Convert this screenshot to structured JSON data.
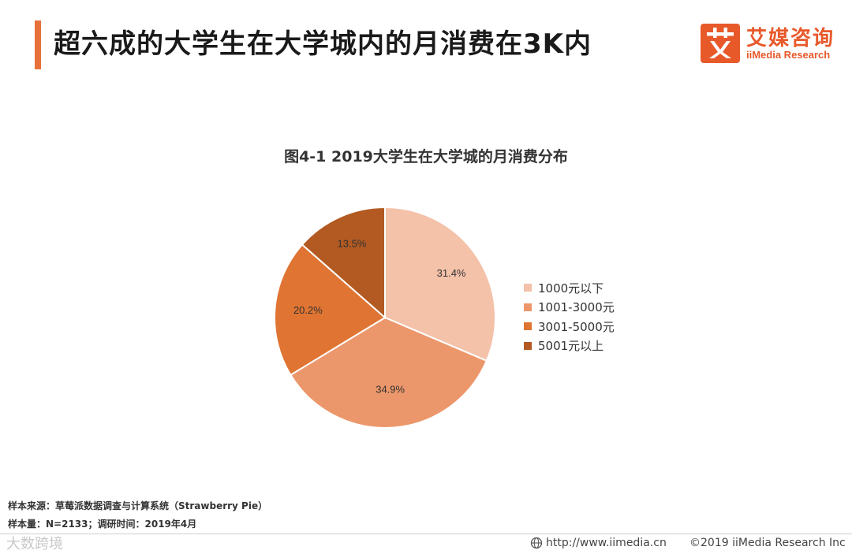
{
  "header": {
    "title": "超六成的大学生在大学城内的月消费在3K内"
  },
  "logo": {
    "mark_char": "艾",
    "name_cn": "艾媒咨询",
    "name_en": "iiMedia Research",
    "color": "#e8592a"
  },
  "chart_data": {
    "type": "pie",
    "title": "图4-1 2019大学生在大学城的月消费分布",
    "categories": [
      "1000元以下",
      "1001-3000元",
      "3001-5000元",
      "5001元以上"
    ],
    "values": [
      31.4,
      34.9,
      20.2,
      13.5
    ],
    "data_labels": [
      "31.4%",
      "34.9%",
      "20.2%",
      "13.5%"
    ],
    "colors": [
      "#f4c1a9",
      "#ec976b",
      "#e07432",
      "#b25a22"
    ],
    "start_angle_deg": 0,
    "direction": "clockwise",
    "legend_position": "right"
  },
  "footer": {
    "source": "样本来源：草莓派数据调查与计算系统（Strawberry Pie）",
    "sample": "样本量：N=2133；调研时间：2019年4月",
    "url": "http://www.iimedia.cn",
    "copyright": "©2019  iiMedia Research  Inc",
    "watermark": "大数跨境"
  }
}
